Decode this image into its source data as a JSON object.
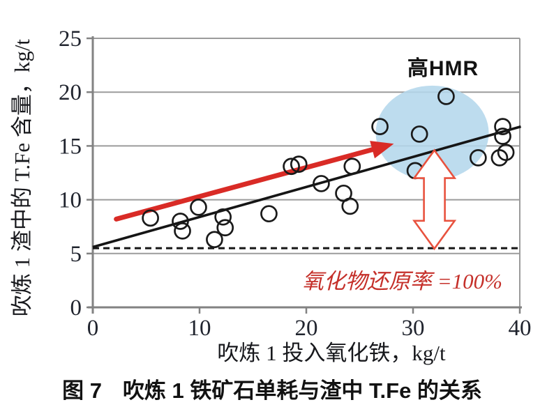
{
  "figure": {
    "caption_prefix": "图 7",
    "caption_text": "吹炼 1 铁矿石单耗与渣中 T.Fe 的关系"
  },
  "chart_data": {
    "type": "scatter",
    "title": "",
    "xlabel": "吹炼 1 投入氧化铁，kg/t",
    "ylabel": "吹炼 1 渣中的 T.Fe 含量，kg/t",
    "xlim": [
      0,
      40
    ],
    "ylim": [
      0,
      25
    ],
    "x_ticks": [
      0,
      10,
      20,
      30,
      40
    ],
    "y_ticks": [
      0,
      5,
      10,
      15,
      20,
      25
    ],
    "grid": "horizontal gridlines on",
    "legend": "none",
    "points": [
      [
        5.4,
        8.3
      ],
      [
        8.2,
        8.0
      ],
      [
        8.4,
        7.1
      ],
      [
        9.9,
        9.3
      ],
      [
        11.4,
        6.3
      ],
      [
        12.2,
        8.4
      ],
      [
        12.4,
        7.4
      ],
      [
        16.5,
        8.7
      ],
      [
        18.6,
        13.1
      ],
      [
        19.3,
        13.3
      ],
      [
        21.4,
        11.5
      ],
      [
        23.5,
        10.6
      ],
      [
        24.1,
        9.4
      ],
      [
        24.3,
        13.1
      ],
      [
        26.9,
        16.8
      ],
      [
        30.2,
        12.7
      ],
      [
        30.6,
        16.1
      ],
      [
        33.1,
        19.6
      ],
      [
        36.1,
        13.9
      ],
      [
        38.1,
        13.9
      ],
      [
        38.4,
        16.8
      ],
      [
        38.4,
        15.9
      ],
      [
        38.7,
        14.4
      ]
    ],
    "trend_line": {
      "x1": 0,
      "y1": 5.6,
      "x2": 40.1,
      "y2": 16.8,
      "color": "#151515"
    },
    "dashed_baseline": {
      "y": 5.5,
      "color": "#151515"
    },
    "annotations": {
      "high_hmr_label": "高HMR",
      "highlight_region": {
        "shape": "ellipse",
        "cx": 31.8,
        "cy": 16.2,
        "color": "#b4d7ec"
      },
      "red_trend_arrow": {
        "x1": 2.2,
        "y1": 8.2,
        "x2": 28.2,
        "y2": 15.2,
        "color": "#d92b26"
      },
      "reduction_gap_arrow": {
        "x": 32.0,
        "y_top": 14.6,
        "y_bottom": 5.45,
        "fill": "#ffffff",
        "outline_color": "#e8523e"
      },
      "reduction_label": "氧化物还原率 =100%",
      "reduction_label_color": "#c5302a"
    },
    "colors": {
      "gridline": "#9b9b9b",
      "axis": "#828282",
      "point_stroke": "#1a1a1a",
      "background": "#ffffff"
    }
  }
}
